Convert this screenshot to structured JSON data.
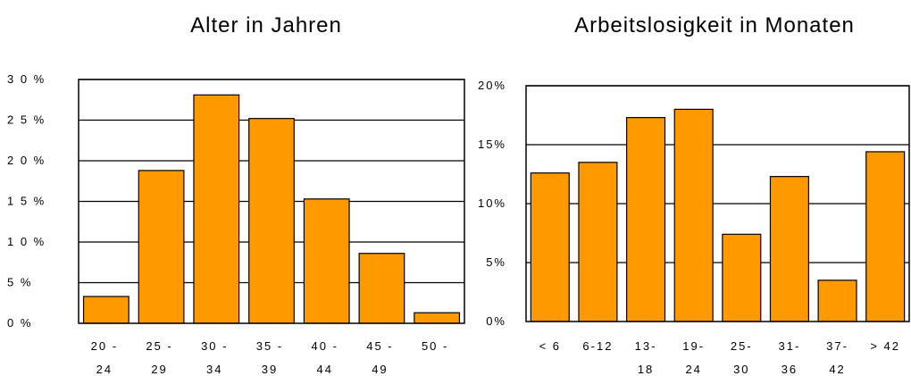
{
  "chart_data": [
    {
      "type": "bar",
      "title": "Alter in Jahren",
      "categories": [
        [
          "20 -",
          "24"
        ],
        [
          "25 -",
          "29"
        ],
        [
          "30 -",
          "34"
        ],
        [
          "35 -",
          "39"
        ],
        [
          "40 -",
          "44"
        ],
        [
          "45 -",
          "49"
        ],
        [
          "50 -",
          ""
        ]
      ],
      "values": [
        3.3,
        18.8,
        28.1,
        25.2,
        15.3,
        8.6,
        1.3
      ],
      "unit": "%",
      "ylim": [
        0,
        30
      ],
      "yticks": [
        0,
        5,
        10,
        15,
        20,
        25,
        30
      ],
      "ytick_labels": [
        "0 %",
        "5 %",
        "1 0 %",
        "1 5 %",
        "2 0 %",
        "2 5 %",
        "3 0 %"
      ],
      "grid": true,
      "bar_color": "#FF9900"
    },
    {
      "type": "bar",
      "title": "Arbeitslosigkeit in Monaten",
      "categories": [
        [
          "< 6",
          ""
        ],
        [
          "6-12",
          ""
        ],
        [
          "13-",
          "18"
        ],
        [
          "19-",
          "24"
        ],
        [
          "25-",
          "30"
        ],
        [
          "31-",
          "36"
        ],
        [
          "37-",
          "42"
        ],
        [
          "> 42",
          ""
        ]
      ],
      "values": [
        12.6,
        13.5,
        17.3,
        18.0,
        7.4,
        12.3,
        3.5,
        14.4
      ],
      "unit": "%",
      "ylim": [
        0,
        20
      ],
      "yticks": [
        0,
        5,
        10,
        15,
        20
      ],
      "ytick_labels": [
        "0%",
        "5%",
        "10%",
        "15%",
        "20%"
      ],
      "grid": true,
      "bar_color": "#FF9900"
    }
  ]
}
